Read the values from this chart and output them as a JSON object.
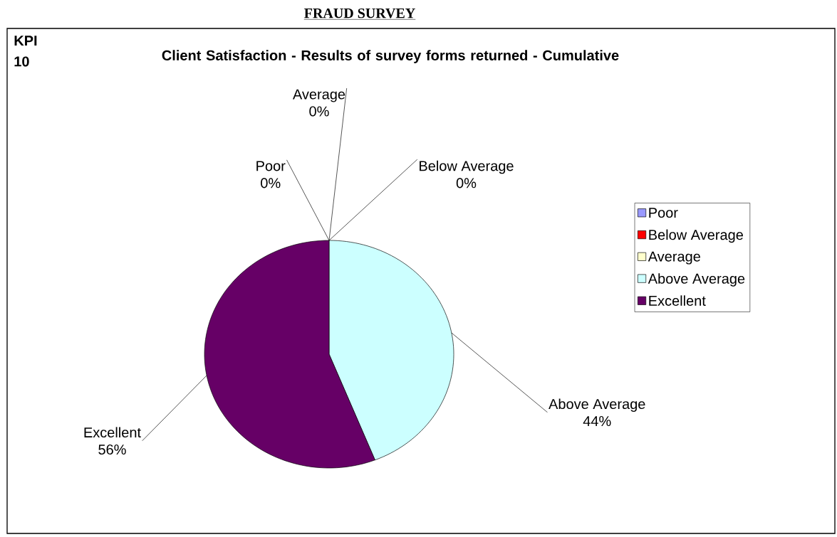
{
  "chart_data": {
    "type": "pie",
    "title": "FRAUD SURVEY",
    "subtitle": "Client Satisfaction - Results of survey forms returned - Cumulative",
    "annotations": [
      "KPI 10"
    ],
    "categories": [
      "Poor",
      "Below Average",
      "Average",
      "Above Average",
      "Excellent"
    ],
    "values": [
      0,
      0,
      0,
      44,
      56
    ],
    "value_labels": [
      "0%",
      "0%",
      "0%",
      "44%",
      "56%"
    ],
    "colors": [
      "#9999ff",
      "#ff0000",
      "#ffffcc",
      "#ccffff",
      "#660066"
    ],
    "legend": "right"
  }
}
